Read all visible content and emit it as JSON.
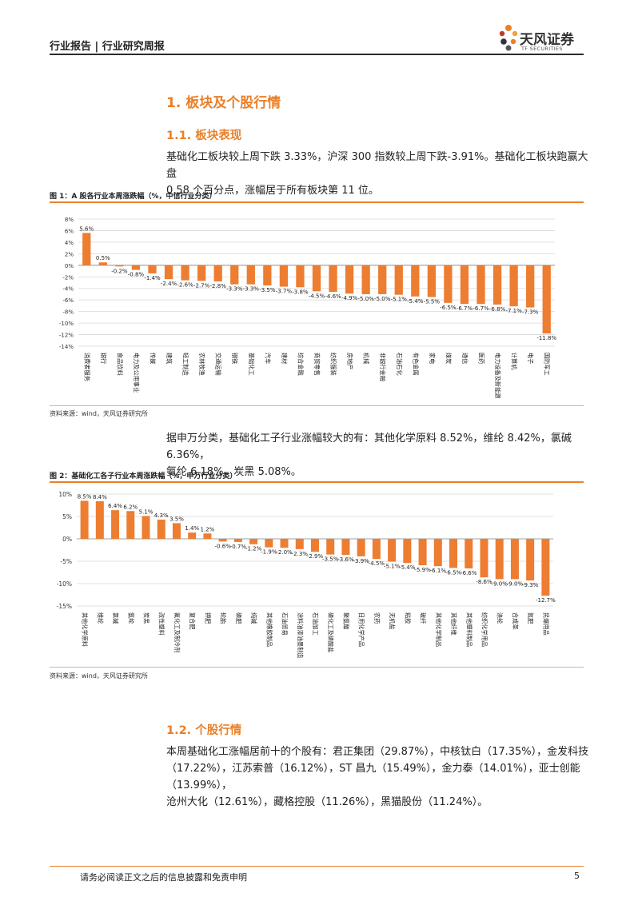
{
  "header": {
    "title": "行业报告 | 行业研究周报",
    "logo_text": "天风证券",
    "logo_sub": "TF SECURITIES"
  },
  "section1": {
    "heading": "1. 板块及个股行情"
  },
  "section1_1": {
    "heading": "1.1. 板块表现",
    "para_line1": "基础化工板块较上周下跌 3.33%，沪深 300 指数较上周下跌-3.91%。基础化工板块跑赢大盘",
    "para_line2": "0.58 个百分点，涨幅居于所有板块第 11 位。"
  },
  "figure1": {
    "caption": "图 1：A 股各行业本周涨跌幅（%，中信行业分类）",
    "source": "资料来源：wind，天风证券研究所"
  },
  "para_mid_line1": "据申万分类，基础化工子行业涨幅较大的有：其他化学原料 8.52%，维纶 8.42%，氯碱 6.36%，",
  "para_mid_line2": "氨纶 6.18%，炭黑 5.08%。",
  "figure2": {
    "caption": "图 2：基础化工各子行业本周涨跌幅（%，申万行业分类）",
    "source": "资料来源：wind，天风证券研究所"
  },
  "section1_2": {
    "heading": "1.2. 个股行情",
    "para_line1": "本周基础化工涨幅居前十的个股有：君正集团（29.87%），中核钛白（17.35%），金发科技",
    "para_line2": "（17.22%），江苏索普（16.12%），ST 昌九（15.49%），金力泰（14.01%），亚士创能（13.99%），",
    "para_line3": "沧州大化（12.61%），藏格控股（11.26%），黑猫股份（11.24%）。"
  },
  "footer": {
    "disclaimer": "请务必阅读正文之后的信息披露和免责申明",
    "page_number": "5"
  },
  "colors": {
    "accent": "#e8802a",
    "bar": "#ed7d31"
  },
  "chart_data": [
    {
      "type": "bar",
      "ylim": [
        -14,
        8
      ],
      "yticks": [
        -14,
        -12,
        -10,
        -8,
        -6,
        -4,
        -2,
        0,
        2,
        4,
        6,
        8
      ],
      "ytick_labels": [
        "-14%",
        "-12%",
        "-10%",
        "-8%",
        "-6%",
        "-4%",
        "-2%",
        "0%",
        "2%",
        "4%",
        "6%",
        "8%"
      ],
      "grid": true,
      "categories": [
        "消费者服务",
        "银行",
        "食品饮料",
        "电力及公用事业",
        "传媒",
        "建筑",
        "轻工制造",
        "农林牧渔",
        "交通运输",
        "钢铁",
        "基础化工",
        "汽车",
        "建材",
        "综合金融",
        "商贸零售",
        "纺织服装",
        "房地产",
        "机械",
        "非银行金融",
        "石油石化",
        "有色金属",
        "家电",
        "煤炭",
        "通信",
        "医药",
        "电力设备及新能源",
        "计算机",
        "电子",
        "国防军工"
      ],
      "values": [
        5.6,
        0.5,
        -0.2,
        -0.8,
        -1.4,
        -2.4,
        -2.6,
        -2.7,
        -2.8,
        -3.3,
        -3.3,
        -3.5,
        -3.7,
        -3.8,
        -4.5,
        -4.6,
        -4.9,
        -5.0,
        -5.0,
        -5.1,
        -5.4,
        -5.5,
        -6.5,
        -6.7,
        -6.7,
        -6.8,
        -7.1,
        -7.3,
        -11.8
      ],
      "value_labels": [
        "5.6%",
        "0.5%",
        "-0.2%",
        "-0.8%",
        "-1.4%",
        "-2.4%",
        "-2.6%",
        "-2.7%",
        "-2.8%",
        "-3.3%",
        "-3.3%",
        "-3.5%",
        "-3.7%",
        "-3.8%",
        "-4.5%",
        "-4.6%",
        "-4.9%",
        "-5.0%",
        "-5.0%",
        "-5.1%",
        "-5.4%",
        "-5.5%",
        "-6.5%",
        "-6.7%",
        "-6.7%",
        "-6.8%",
        "-7.1%",
        "-7.3%",
        "-11.8%"
      ]
    },
    {
      "type": "bar",
      "ylim": [
        -15,
        10
      ],
      "yticks": [
        -15,
        -10,
        -5,
        0,
        5,
        10
      ],
      "ytick_labels": [
        "-15%",
        "-10%",
        "-5%",
        "0%",
        "5%",
        "10%"
      ],
      "grid": true,
      "categories": [
        "其他化学原料",
        "维纶",
        "氯碱",
        "氨纶",
        "炭黑",
        "改性塑料",
        "氟化工及制冷剂",
        "复合肥",
        "钾肥",
        "轮胎",
        "磷肥",
        "纯碱",
        "其他橡胶制品",
        "石油贸易",
        "涂料油漆油墨制造",
        "石油加工",
        "磷化工及磷酸盐",
        "聚氨酯",
        "日用化学产品",
        "农药",
        "无机盐",
        "粘胶",
        "玻纤",
        "其他化学制品",
        "其他纤维",
        "其他塑料制品",
        "纺织化学用品",
        "涤纶",
        "合成革",
        "氮肥",
        "民爆用品"
      ],
      "values": [
        8.5,
        8.4,
        6.4,
        6.2,
        5.1,
        4.3,
        3.5,
        1.4,
        1.2,
        -0.6,
        -0.7,
        -1.2,
        -1.9,
        -2.0,
        -2.3,
        -2.9,
        -3.5,
        -3.6,
        -3.9,
        -4.5,
        -5.1,
        -5.4,
        -5.9,
        -6.1,
        -6.5,
        -6.6,
        -8.6,
        -9.0,
        -9.0,
        -9.3,
        -12.7
      ],
      "value_labels": [
        "8.5%",
        "8.4%",
        "6.4%",
        "6.2%",
        "5.1%",
        "4.3%",
        "3.5%",
        "1.4%",
        "1.2%",
        "-0.6%",
        "-0.7%",
        "-1.2%",
        "-1.9%",
        "-2.0%",
        "-2.3%",
        "-2.9%",
        "-3.5%",
        "-3.6%",
        "-3.9%",
        "-4.5%",
        "-5.1%",
        "-5.4%",
        "-5.9%",
        "-6.1%",
        "-6.5%",
        "-6.6%",
        "-8.6%",
        "-9.0%",
        "-9.0%",
        "-9.3%",
        "-12.7%"
      ]
    }
  ]
}
